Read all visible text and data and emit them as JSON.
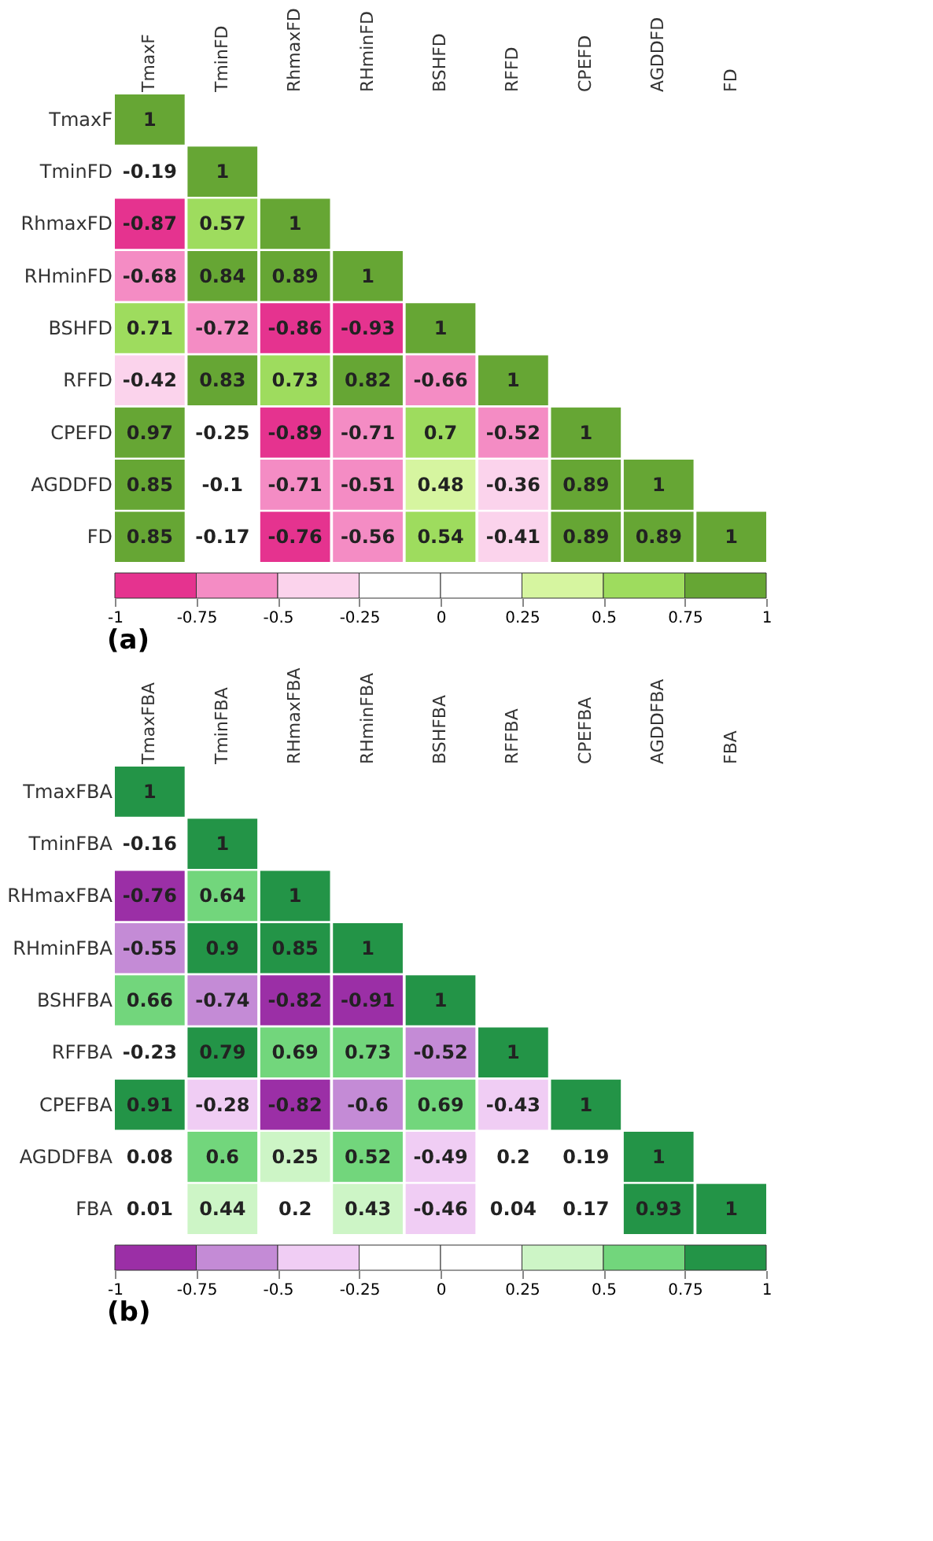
{
  "chart_data": [
    {
      "type": "heatmap",
      "annotations": [
        "(a)"
      ],
      "categories": [
        "TmaxF",
        "TminFD",
        "RhmaxFD",
        "RHminFD",
        "BSHFD",
        "RFFD",
        "CPEFD",
        "AGDDFD",
        "FD"
      ],
      "y_categories": [
        "TmaxF",
        "TminFD",
        "RhmaxFD",
        "RHminFD",
        "BSHFD",
        "RFFD",
        "CPEFD",
        "AGDDFD",
        "FD"
      ],
      "cells": [
        [
          1,
          null,
          null,
          null,
          null,
          null,
          null,
          null,
          null
        ],
        [
          -0.19,
          1,
          null,
          null,
          null,
          null,
          null,
          null,
          null
        ],
        [
          -0.87,
          0.57,
          1,
          null,
          null,
          null,
          null,
          null,
          null
        ],
        [
          -0.68,
          0.84,
          0.89,
          1,
          null,
          null,
          null,
          null,
          null
        ],
        [
          0.71,
          -0.72,
          -0.86,
          -0.93,
          1,
          null,
          null,
          null,
          null
        ],
        [
          -0.42,
          0.83,
          0.73,
          0.82,
          -0.66,
          1,
          null,
          null,
          null
        ],
        [
          0.97,
          -0.25,
          -0.89,
          -0.71,
          0.7,
          -0.52,
          1,
          null,
          null
        ],
        [
          0.85,
          -0.1,
          -0.71,
          -0.51,
          0.48,
          -0.36,
          0.89,
          1,
          null
        ],
        [
          0.85,
          -0.17,
          -0.76,
          -0.56,
          0.54,
          -0.41,
          0.89,
          0.89,
          1
        ]
      ],
      "data_labels": true,
      "clim": [
        -1,
        1
      ],
      "cticks": [
        -1,
        -0.75,
        -0.5,
        -0.25,
        0,
        0.25,
        0.5,
        0.75,
        1
      ]
    },
    {
      "type": "heatmap",
      "annotations": [
        "(b)"
      ],
      "categories": [
        "TmaxFBA",
        "TminFBA",
        "RHmaxFBA",
        "RHminFBA",
        "BSHFBA",
        "RFFBA",
        "CPEFBA",
        "AGDDFBA",
        "FBA"
      ],
      "y_categories": [
        "TmaxFBA",
        "TminFBA",
        "RHmaxFBA",
        "RHminFBA",
        "BSHFBA",
        "RFFBA",
        "CPEFBA",
        "AGDDFBA",
        "FBA"
      ],
      "cells": [
        [
          1,
          null,
          null,
          null,
          null,
          null,
          null,
          null,
          null
        ],
        [
          -0.16,
          1,
          null,
          null,
          null,
          null,
          null,
          null,
          null
        ],
        [
          -0.76,
          0.64,
          1,
          null,
          null,
          null,
          null,
          null,
          null
        ],
        [
          -0.55,
          0.9,
          0.85,
          1,
          null,
          null,
          null,
          null,
          null
        ],
        [
          0.66,
          -0.74,
          -0.82,
          -0.91,
          1,
          null,
          null,
          null,
          null
        ],
        [
          -0.23,
          0.79,
          0.69,
          0.73,
          -0.52,
          1,
          null,
          null,
          null
        ],
        [
          0.91,
          -0.28,
          -0.82,
          -0.6,
          0.69,
          -0.43,
          1,
          null,
          null
        ],
        [
          0.08,
          0.6,
          0.25,
          0.52,
          -0.49,
          0.2,
          0.19,
          1,
          null
        ],
        [
          0.01,
          0.44,
          0.2,
          0.43,
          -0.46,
          0.04,
          0.17,
          0.93,
          1
        ]
      ],
      "data_labels": true,
      "clim": [
        -1,
        1
      ],
      "cticks": [
        -1,
        -0.75,
        -0.5,
        -0.25,
        0,
        0.25,
        0.5,
        0.75,
        1
      ]
    }
  ]
}
